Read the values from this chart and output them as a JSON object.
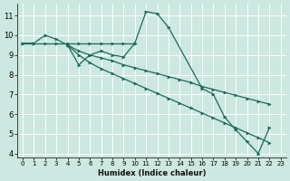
{
  "xlabel": "Humidex (Indice chaleur)",
  "bg_color": "#cce8e0",
  "grid_color": "#ffffff",
  "line_color": "#1a6b5a",
  "xlim": [
    -0.5,
    23.5
  ],
  "ylim": [
    3.8,
    11.6
  ],
  "xticks": [
    0,
    1,
    2,
    3,
    4,
    5,
    6,
    7,
    8,
    9,
    10,
    11,
    12,
    13,
    14,
    15,
    16,
    17,
    18,
    19,
    20,
    21,
    22,
    23
  ],
  "yticks": [
    4,
    5,
    6,
    7,
    8,
    9,
    10,
    11
  ],
  "line1_x": [
    0,
    1,
    2,
    3,
    4,
    5,
    6,
    7,
    8,
    9,
    10,
    11,
    12,
    13,
    16,
    17,
    18,
    19,
    20,
    21,
    22
  ],
  "line1_y": [
    9.6,
    9.6,
    10.0,
    9.8,
    9.5,
    8.5,
    9.0,
    9.2,
    9.0,
    8.9,
    9.6,
    11.2,
    11.1,
    10.4,
    7.3,
    7.0,
    5.85,
    5.2,
    4.6,
    4.0,
    5.3
  ],
  "line2_x": [
    0,
    1,
    2,
    3,
    4,
    5,
    6,
    7,
    8,
    9,
    10
  ],
  "line2_y": [
    9.6,
    9.6,
    9.6,
    9.6,
    9.6,
    9.6,
    9.6,
    9.6,
    9.6,
    9.6,
    9.6
  ],
  "line3_x": [
    4,
    5,
    6,
    7,
    8,
    9,
    10,
    11,
    12,
    13,
    14,
    15,
    16,
    17,
    18,
    19,
    20,
    21,
    22
  ],
  "line3_y": [
    9.5,
    9.2,
    9.0,
    8.85,
    8.7,
    8.5,
    8.35,
    8.2,
    8.05,
    7.9,
    7.75,
    7.6,
    7.4,
    7.25,
    7.1,
    6.95,
    6.8,
    6.65,
    6.5
  ],
  "line4_x": [
    4,
    5,
    6,
    7,
    8,
    9,
    10,
    11,
    12,
    13,
    14,
    15,
    16,
    17,
    18,
    19,
    20,
    21,
    22
  ],
  "line4_y": [
    9.5,
    9.0,
    8.6,
    8.3,
    8.05,
    7.8,
    7.55,
    7.3,
    7.05,
    6.8,
    6.55,
    6.3,
    6.05,
    5.8,
    5.55,
    5.3,
    5.05,
    4.8,
    4.55
  ]
}
